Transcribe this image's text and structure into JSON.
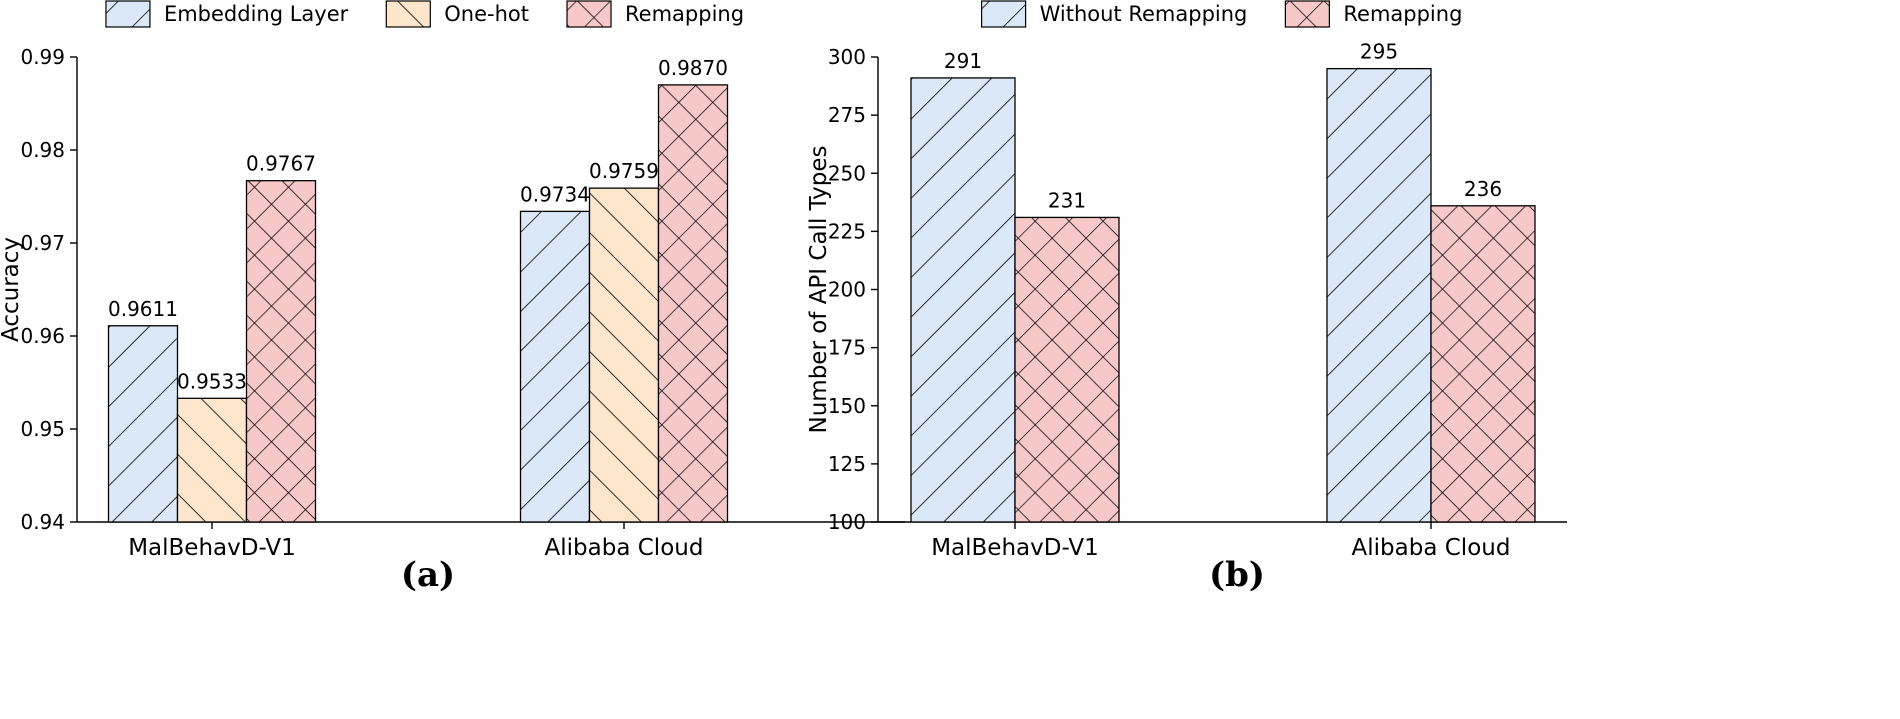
{
  "colors": {
    "blue": "#dae8f8",
    "orange": "#fde6cc",
    "pink": "#f6c8c8",
    "edge": "#000000"
  },
  "chart_data": [
    {
      "type": "bar",
      "panel_label": "(a)",
      "categories": [
        "MalBehavD-V1",
        "Alibaba Cloud"
      ],
      "series": [
        {
          "name": "Embedding Layer",
          "values": [
            0.9611,
            0.9734
          ],
          "labels": [
            "0.9611",
            "0.9734"
          ],
          "color": "blue",
          "hatch": "slash"
        },
        {
          "name": "One-hot",
          "values": [
            0.9533,
            0.9759
          ],
          "labels": [
            "0.9533",
            "0.9759"
          ],
          "color": "orange",
          "hatch": "backslash"
        },
        {
          "name": "Remapping",
          "values": [
            0.9767,
            0.987
          ],
          "labels": [
            "0.9767",
            "0.9870"
          ],
          "color": "pink",
          "hatch": "cross"
        }
      ],
      "ylabel": "Accuracy",
      "xlabel": "",
      "ylim": [
        0.94,
        0.99
      ],
      "yticks": [
        0.94,
        0.95,
        0.96,
        0.97,
        0.98,
        0.99
      ],
      "ytick_labels": [
        "0.94",
        "0.95",
        "0.96",
        "0.97",
        "0.98",
        "0.99"
      ],
      "legend": "top-center",
      "grid": false
    },
    {
      "type": "bar",
      "panel_label": "(b)",
      "categories": [
        "MalBehavD-V1",
        "Alibaba Cloud"
      ],
      "series": [
        {
          "name": "Without Remapping",
          "values": [
            291,
            295
          ],
          "labels": [
            "291",
            "295"
          ],
          "color": "blue",
          "hatch": "slash"
        },
        {
          "name": "Remapping",
          "values": [
            231,
            236
          ],
          "labels": [
            "231",
            "236"
          ],
          "color": "pink",
          "hatch": "cross"
        }
      ],
      "ylabel": "Number of API Call Types",
      "xlabel": "",
      "ylim": [
        100,
        300
      ],
      "yticks": [
        100,
        125,
        150,
        175,
        200,
        225,
        250,
        275,
        300
      ],
      "ytick_labels": [
        "100",
        "125",
        "150",
        "175",
        "200",
        "225",
        "250",
        "275",
        "300"
      ],
      "legend": "top-center",
      "grid": false
    }
  ]
}
